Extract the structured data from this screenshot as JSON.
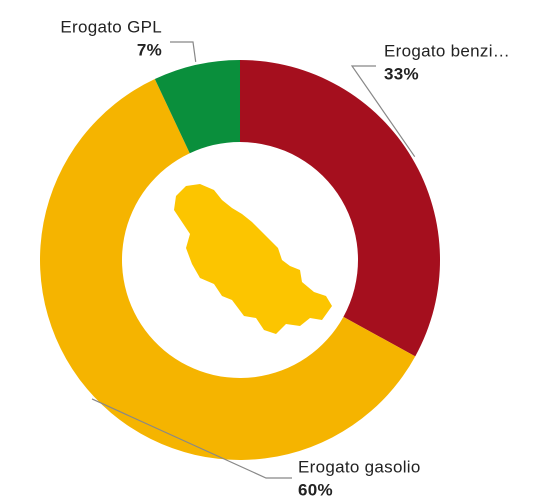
{
  "chart_data": {
    "type": "donut",
    "categories": [
      "Erogato benzi…",
      "Erogato gasolio",
      "Erogato GPL"
    ],
    "values": [
      33,
      60,
      7
    ],
    "value_labels": [
      "33%",
      "60%",
      "7%"
    ],
    "colors": [
      "#a50f1e",
      "#f5b400",
      "#0a8f3c"
    ]
  }
}
